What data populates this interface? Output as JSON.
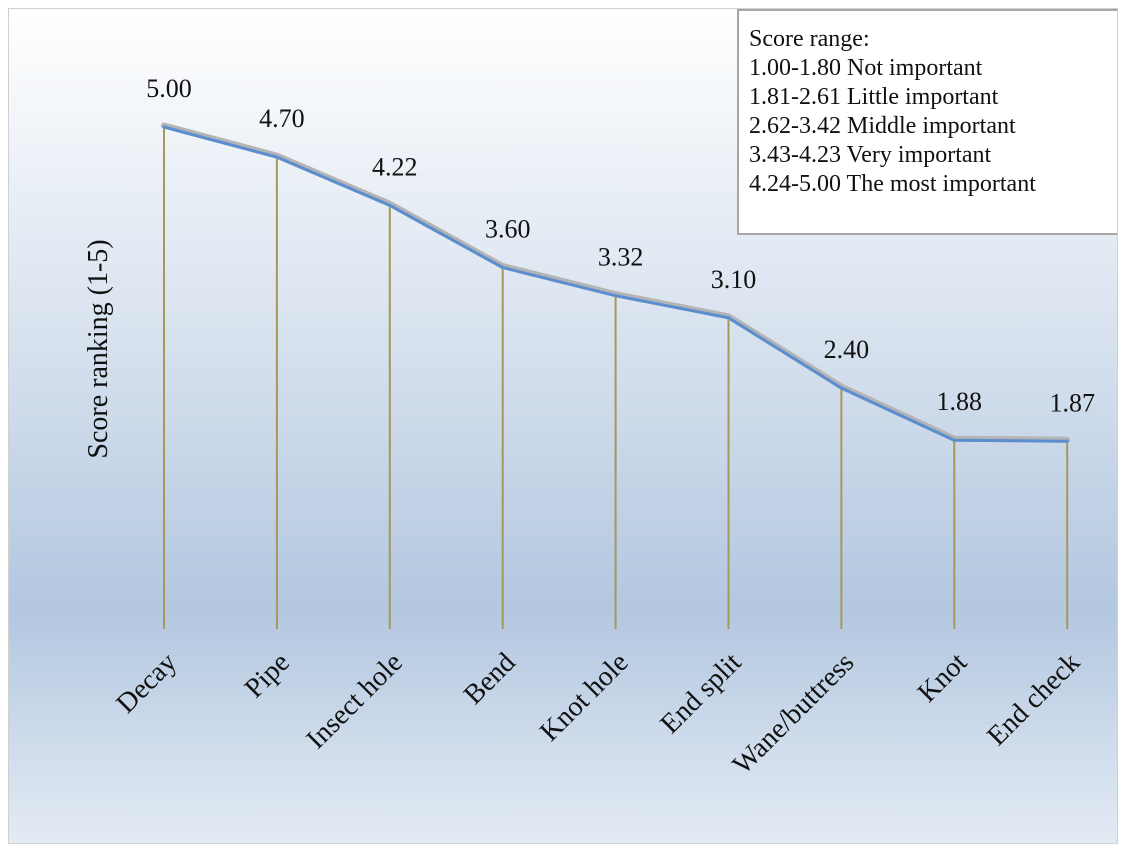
{
  "chart_data": {
    "type": "line",
    "title": "",
    "xlabel": "",
    "ylabel": "Score ranking (1-5)",
    "ylim": [
      0,
      5
    ],
    "categories": [
      "Decay",
      "Pipe",
      "Insect hole",
      "Bend",
      "Knot hole",
      "End split",
      "Wane/buttress",
      "Knot",
      "End check"
    ],
    "values": [
      5.0,
      4.7,
      4.22,
      3.6,
      3.32,
      3.1,
      2.4,
      1.88,
      1.87
    ],
    "value_labels": [
      "5.00",
      "4.70",
      "4.22",
      "3.60",
      "3.32",
      "3.10",
      "2.40",
      "1.88",
      "1.87"
    ],
    "drop_lines": true,
    "grid": false,
    "legend_position": "top-right",
    "colors": {
      "line": "#5b8ed0",
      "line_shadow": "#b4b4b4",
      "drop_line": "#a6975a"
    }
  },
  "legend": {
    "title": "Score range:",
    "items": [
      "1.00-1.80 Not important",
      "1.81-2.61 Little important",
      "2.62-3.42 Middle important",
      "3.43-4.23 Very important",
      "4.24-5.00 The most important"
    ]
  }
}
